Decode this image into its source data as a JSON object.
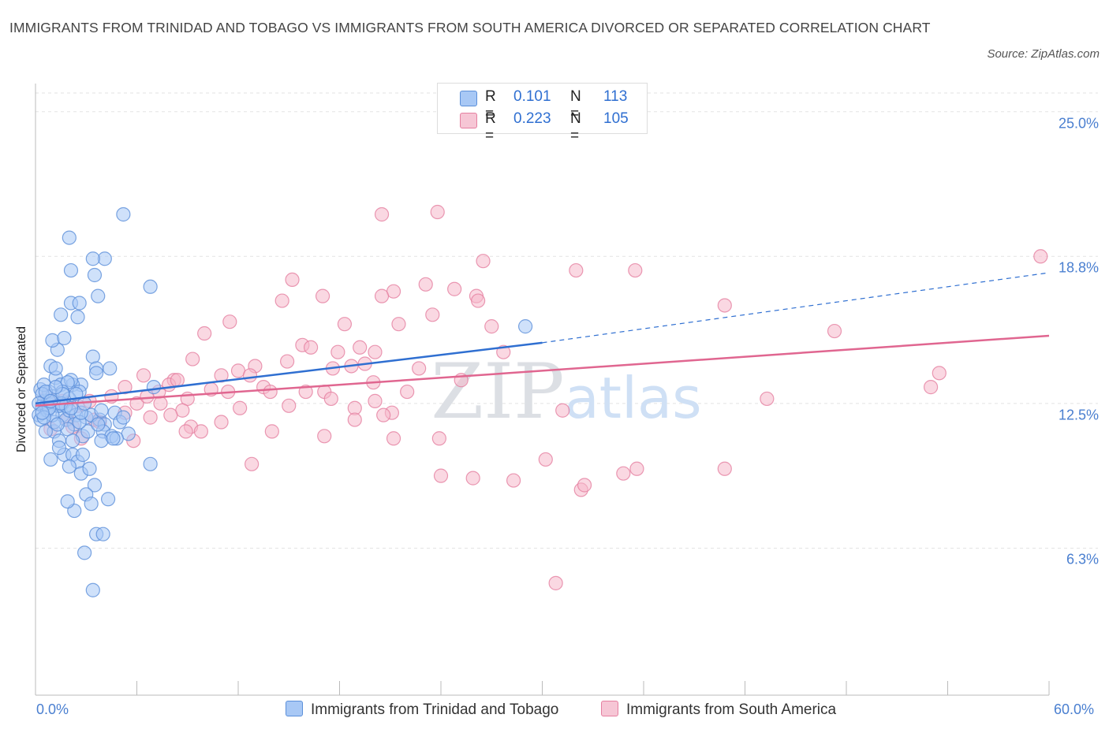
{
  "title": "IMMIGRANTS FROM TRINIDAD AND TOBAGO VS IMMIGRANTS FROM SOUTH AMERICA DIVORCED OR SEPARATED CORRELATION CHART",
  "source": "Source: ZipAtlas.com",
  "watermark": "ZIPatlas",
  "colors": {
    "blue_fill": "#a8c8f5",
    "blue_stroke": "#5b8fd9",
    "blue_line": "#2f6fd1",
    "pink_fill": "#f6b8cb",
    "pink_stroke": "#e57fa0",
    "pink_line": "#e06690",
    "grid": "#e3e3e3",
    "tick_text": "#4a7fd0"
  },
  "legend": {
    "r_label": "R =",
    "n_label": "N =",
    "rows": [
      {
        "r": "0.101",
        "n": "113"
      },
      {
        "r": "0.223",
        "n": "105"
      }
    ]
  },
  "chart_data": {
    "type": "scatter",
    "xlabel": "",
    "ylabel": "Divorced or Separated",
    "xlim": [
      0,
      60
    ],
    "ylim": [
      0,
      25.8
    ],
    "y_ticks": [
      {
        "value": 6.3,
        "label": "6.3%"
      },
      {
        "value": 12.5,
        "label": "12.5%"
      },
      {
        "value": 18.8,
        "label": "18.8%"
      },
      {
        "value": 25.0,
        "label": "25.0%"
      }
    ],
    "x_tick_labels": {
      "min": "0.0%",
      "max": "60.0%"
    },
    "grid": "horizontal dashed",
    "legend_placement": "top-center",
    "series": [
      {
        "name": "Immigrants from Trinidad and Tobago",
        "color": "blue",
        "R": 0.101,
        "N": 113,
        "trend": {
          "x0": 0.0,
          "y0": 12.5,
          "x1": 30.0,
          "y1": 15.1,
          "dashed_to": 60.0,
          "dashed_y": 18.1
        },
        "points": [
          [
            0.3,
            13.1
          ],
          [
            0.5,
            12.6
          ],
          [
            0.6,
            12.2
          ],
          [
            0.8,
            13.0
          ],
          [
            0.4,
            12.4
          ],
          [
            0.7,
            12.5
          ],
          [
            1.0,
            12.8
          ],
          [
            1.2,
            13.6
          ],
          [
            0.9,
            14.1
          ],
          [
            1.5,
            13.3
          ],
          [
            1.3,
            12.4
          ],
          [
            1.6,
            12.0
          ],
          [
            1.8,
            11.8
          ],
          [
            2.0,
            12.2
          ],
          [
            1.1,
            11.3
          ],
          [
            1.4,
            10.9
          ],
          [
            0.9,
            10.1
          ],
          [
            1.7,
            10.3
          ],
          [
            2.2,
            10.3
          ],
          [
            2.5,
            10.0
          ],
          [
            2.8,
            10.3
          ],
          [
            2.0,
            9.8
          ],
          [
            2.7,
            9.5
          ],
          [
            3.2,
            9.7
          ],
          [
            3.5,
            9.0
          ],
          [
            3.0,
            8.6
          ],
          [
            3.3,
            8.2
          ],
          [
            4.3,
            8.4
          ],
          [
            2.3,
            7.9
          ],
          [
            1.9,
            8.3
          ],
          [
            3.6,
            6.9
          ],
          [
            4.0,
            6.9
          ],
          [
            2.9,
            6.1
          ],
          [
            3.4,
            4.5
          ],
          [
            1.2,
            14.0
          ],
          [
            1.3,
            14.8
          ],
          [
            1.0,
            15.2
          ],
          [
            1.7,
            15.3
          ],
          [
            1.5,
            16.3
          ],
          [
            2.5,
            16.2
          ],
          [
            2.1,
            16.8
          ],
          [
            2.6,
            16.8
          ],
          [
            3.7,
            17.1
          ],
          [
            2.1,
            18.2
          ],
          [
            3.5,
            18.0
          ],
          [
            4.1,
            18.7
          ],
          [
            2.0,
            19.6
          ],
          [
            3.4,
            18.7
          ],
          [
            5.2,
            20.6
          ],
          [
            6.8,
            17.5
          ],
          [
            3.4,
            14.5
          ],
          [
            3.6,
            14.0
          ],
          [
            4.4,
            14.0
          ],
          [
            3.6,
            13.8
          ],
          [
            2.7,
            13.3
          ],
          [
            2.2,
            13.3
          ],
          [
            2.1,
            13.5
          ],
          [
            1.9,
            13.4
          ],
          [
            1.6,
            13.0
          ],
          [
            2.6,
            13.0
          ],
          [
            1.6,
            12.5
          ],
          [
            2.0,
            12.7
          ],
          [
            2.4,
            12.0
          ],
          [
            3.0,
            11.9
          ],
          [
            3.8,
            11.8
          ],
          [
            4.1,
            11.6
          ],
          [
            4.7,
            12.1
          ],
          [
            5.0,
            11.7
          ],
          [
            5.5,
            11.2
          ],
          [
            4.0,
            11.3
          ],
          [
            4.5,
            11.1
          ],
          [
            6.8,
            9.9
          ],
          [
            7.0,
            13.2
          ],
          [
            29.0,
            15.8
          ],
          [
            0.2,
            12.0
          ],
          [
            0.3,
            11.8
          ],
          [
            0.6,
            11.3
          ],
          [
            0.8,
            12.6
          ],
          [
            1.4,
            12.4
          ],
          [
            0.5,
            13.3
          ],
          [
            3.9,
            10.9
          ],
          [
            4.8,
            11.0
          ],
          [
            2.3,
            11.6
          ],
          [
            1.8,
            12.4
          ],
          [
            0.7,
            12.2
          ],
          [
            2.8,
            11.1
          ],
          [
            0.4,
            12.9
          ],
          [
            1.1,
            11.7
          ],
          [
            2.4,
            12.9
          ],
          [
            3.1,
            11.3
          ],
          [
            1.5,
            12.5
          ],
          [
            2.6,
            11.7
          ],
          [
            0.2,
            12.5
          ],
          [
            0.6,
            13.0
          ],
          [
            1.0,
            12.0
          ],
          [
            1.9,
            11.4
          ],
          [
            3.3,
            12.0
          ],
          [
            2.2,
            10.9
          ],
          [
            4.6,
            11.0
          ],
          [
            1.3,
            11.6
          ],
          [
            0.8,
            12.3
          ],
          [
            2.7,
            12.1
          ],
          [
            3.9,
            12.2
          ],
          [
            0.5,
            11.9
          ],
          [
            1.6,
            12.9
          ],
          [
            2.1,
            12.3
          ],
          [
            1.2,
            13.2
          ],
          [
            0.9,
            12.6
          ],
          [
            3.7,
            11.6
          ],
          [
            2.9,
            12.5
          ],
          [
            1.4,
            10.6
          ],
          [
            5.2,
            11.9
          ],
          [
            0.4,
            12.1
          ]
        ]
      },
      {
        "name": "Immigrants from South America",
        "color": "pink",
        "R": 0.223,
        "N": 105,
        "trend": {
          "x0": 0.0,
          "y0": 12.4,
          "x1": 60.0,
          "y1": 15.4
        },
        "points": [
          [
            20.5,
            20.6
          ],
          [
            23.8,
            20.7
          ],
          [
            26.5,
            18.6
          ],
          [
            32.0,
            18.2
          ],
          [
            35.5,
            18.2
          ],
          [
            59.5,
            18.8
          ],
          [
            15.2,
            17.8
          ],
          [
            14.6,
            16.9
          ],
          [
            17.0,
            17.1
          ],
          [
            23.1,
            17.6
          ],
          [
            24.8,
            17.4
          ],
          [
            26.1,
            17.1
          ],
          [
            26.2,
            16.9
          ],
          [
            21.2,
            17.3
          ],
          [
            20.5,
            17.1
          ],
          [
            40.8,
            16.7
          ],
          [
            11.5,
            16.0
          ],
          [
            18.3,
            15.9
          ],
          [
            21.5,
            15.9
          ],
          [
            23.5,
            16.3
          ],
          [
            27.0,
            15.8
          ],
          [
            47.3,
            15.6
          ],
          [
            10.0,
            15.5
          ],
          [
            15.8,
            15.0
          ],
          [
            16.3,
            14.9
          ],
          [
            19.2,
            14.9
          ],
          [
            17.9,
            14.7
          ],
          [
            20.1,
            14.7
          ],
          [
            27.7,
            14.7
          ],
          [
            9.3,
            14.4
          ],
          [
            14.9,
            14.3
          ],
          [
            18.7,
            14.1
          ],
          [
            13.0,
            14.1
          ],
          [
            6.4,
            13.7
          ],
          [
            8.2,
            13.5
          ],
          [
            11.0,
            13.7
          ],
          [
            12.0,
            13.9
          ],
          [
            12.7,
            13.7
          ],
          [
            13.5,
            13.2
          ],
          [
            17.6,
            14.0
          ],
          [
            19.5,
            14.2
          ],
          [
            22.7,
            14.0
          ],
          [
            25.2,
            13.5
          ],
          [
            53.5,
            13.8
          ],
          [
            53.0,
            13.2
          ],
          [
            5.3,
            13.2
          ],
          [
            7.3,
            13.0
          ],
          [
            7.9,
            13.3
          ],
          [
            8.4,
            13.5
          ],
          [
            10.4,
            13.1
          ],
          [
            11.4,
            13.0
          ],
          [
            13.9,
            13.0
          ],
          [
            16.0,
            13.0
          ],
          [
            17.1,
            13.0
          ],
          [
            17.5,
            12.7
          ],
          [
            20.0,
            13.4
          ],
          [
            22.0,
            13.0
          ],
          [
            9.0,
            12.7
          ],
          [
            6.0,
            12.5
          ],
          [
            4.5,
            12.8
          ],
          [
            6.6,
            12.8
          ],
          [
            7.4,
            12.5
          ],
          [
            8.7,
            12.2
          ],
          [
            12.1,
            12.3
          ],
          [
            15.0,
            12.4
          ],
          [
            18.9,
            12.3
          ],
          [
            20.1,
            12.6
          ],
          [
            21.1,
            12.1
          ],
          [
            21.2,
            11.0
          ],
          [
            31.2,
            12.2
          ],
          [
            43.3,
            12.7
          ],
          [
            0.7,
            12.8
          ],
          [
            1.6,
            12.6
          ],
          [
            2.5,
            12.4
          ],
          [
            3.2,
            12.6
          ],
          [
            3.5,
            11.8
          ],
          [
            5.3,
            12.1
          ],
          [
            6.8,
            11.9
          ],
          [
            8.0,
            12.0
          ],
          [
            9.2,
            11.5
          ],
          [
            9.8,
            11.3
          ],
          [
            11.0,
            11.7
          ],
          [
            14.0,
            11.3
          ],
          [
            17.1,
            11.1
          ],
          [
            2.7,
            11.0
          ],
          [
            0.9,
            11.4
          ],
          [
            1.9,
            11.8
          ],
          [
            3.8,
            11.7
          ],
          [
            5.8,
            10.9
          ],
          [
            8.9,
            11.3
          ],
          [
            18.9,
            11.8
          ],
          [
            20.6,
            12.0
          ],
          [
            23.9,
            11.0
          ],
          [
            24.0,
            9.4
          ],
          [
            25.9,
            9.3
          ],
          [
            28.3,
            9.2
          ],
          [
            30.2,
            10.1
          ],
          [
            32.3,
            8.8
          ],
          [
            32.5,
            9.0
          ],
          [
            34.8,
            9.5
          ],
          [
            35.6,
            9.7
          ],
          [
            40.8,
            9.7
          ],
          [
            12.8,
            9.9
          ],
          [
            30.8,
            4.8
          ],
          [
            2.2,
            11.5
          ]
        ]
      }
    ]
  }
}
